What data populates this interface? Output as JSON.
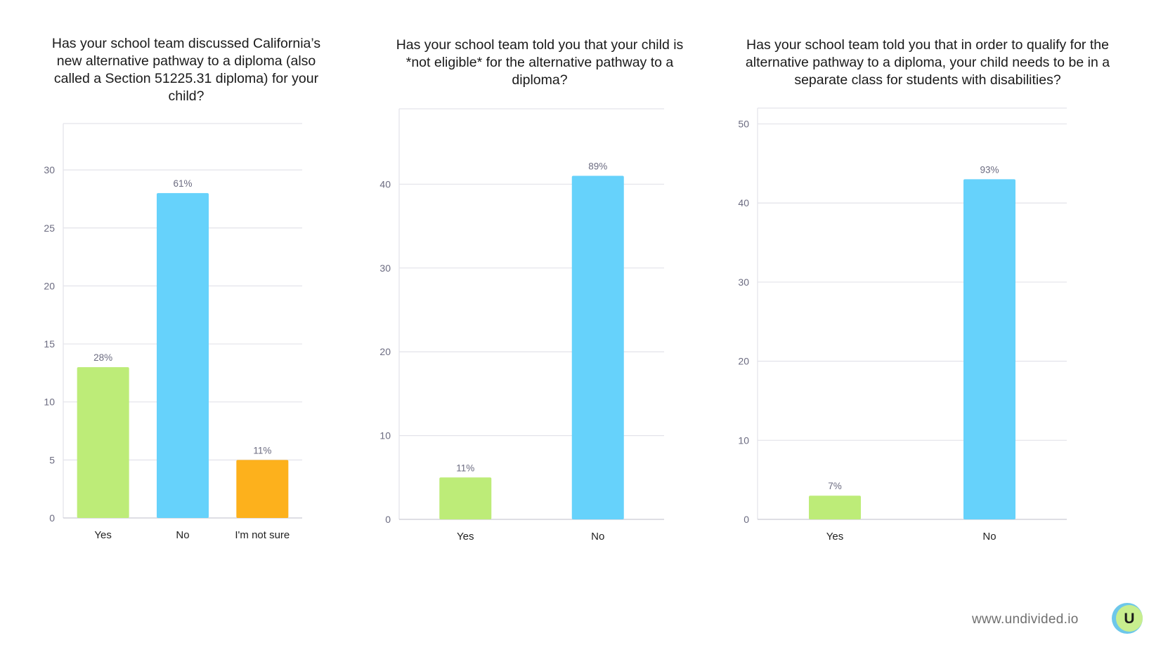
{
  "chart_data": [
    {
      "type": "bar",
      "title": "Has your school team discussed California’s new alternative pathway to a diploma (also called a Section 51225.31 diploma) for your child?",
      "categories": [
        "Yes",
        "No",
        "I'm not sure"
      ],
      "values": [
        13,
        28,
        5
      ],
      "data_labels": [
        "28%",
        "61%",
        "11%"
      ],
      "colors": [
        "#bdec78",
        "#66d2fb",
        "#fdb11c"
      ],
      "yticks": [
        0,
        5,
        10,
        15,
        20,
        25,
        30
      ],
      "ylim": [
        0,
        34
      ],
      "xlabel": "",
      "ylabel": "",
      "grid": true
    },
    {
      "type": "bar",
      "title": "Has your school team told you that your child is *not eligible* for the alternative pathway to a diploma?",
      "categories": [
        "Yes",
        "No"
      ],
      "values": [
        5,
        41
      ],
      "data_labels": [
        "11%",
        "89%"
      ],
      "colors": [
        "#bdec78",
        "#66d2fb"
      ],
      "yticks": [
        0,
        10,
        20,
        30,
        40
      ],
      "ylim": [
        0,
        49
      ],
      "xlabel": "",
      "ylabel": "",
      "grid": true
    },
    {
      "type": "bar",
      "title": "Has your school team told you that in order to qualify for the alternative pathway to a diploma, your child needs to be in a separate class for students with disabilities?",
      "categories": [
        "Yes",
        "No"
      ],
      "values": [
        3,
        43
      ],
      "data_labels": [
        "7%",
        "93%"
      ],
      "colors": [
        "#bdec78",
        "#66d2fb"
      ],
      "yticks": [
        0,
        10,
        20,
        30,
        40,
        50
      ],
      "ylim": [
        0,
        52
      ],
      "xlabel": "",
      "ylabel": "",
      "grid": true
    }
  ],
  "footer": {
    "url": "www.undivided.io",
    "logo_letter": "U"
  },
  "brand": {
    "logo_circle": "#6dc7ea",
    "logo_inner": "#c8ee8e"
  }
}
